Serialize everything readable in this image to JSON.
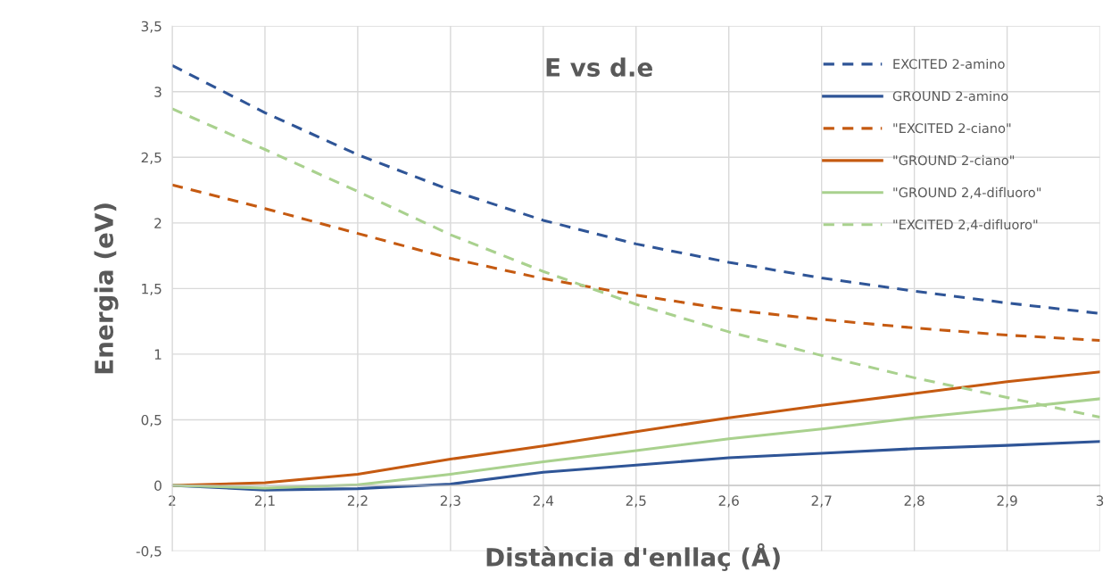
{
  "chart_data": {
    "type": "line",
    "title": "E vs d.e",
    "xlabel": "Distància d'enllaç (Å)",
    "ylabel": "Energia (eV)",
    "x": [
      2.0,
      2.1,
      2.2,
      2.3,
      2.4,
      2.5,
      2.6,
      2.7,
      2.8,
      2.9,
      3.0
    ],
    "series": [
      {
        "name": "EXCITED 2-amino",
        "color": "#2f5597",
        "line_style": "dashed",
        "values": [
          3.2,
          2.84,
          2.52,
          2.25,
          2.02,
          1.84,
          1.7,
          1.58,
          1.48,
          1.39,
          1.31
        ]
      },
      {
        "name": "GROUND 2-amino",
        "color": "#2f5597",
        "line_style": "solid",
        "values": [
          0,
          -0.035,
          -0.025,
          0.01,
          0.1,
          0.155,
          0.21,
          0.245,
          0.28,
          0.305,
          0.335
        ]
      },
      {
        "name": "\"EXCITED 2-ciano\"",
        "color": "#c55a11",
        "line_style": "dashed",
        "values": [
          2.29,
          2.11,
          1.92,
          1.73,
          1.575,
          1.45,
          1.34,
          1.265,
          1.2,
          1.145,
          1.105
        ]
      },
      {
        "name": "\"GROUND 2-ciano\"",
        "color": "#c55a11",
        "line_style": "solid",
        "values": [
          0,
          0.02,
          0.085,
          0.2,
          0.3,
          0.41,
          0.515,
          0.61,
          0.7,
          0.79,
          0.865
        ]
      },
      {
        "name": "\"GROUND 2,4-difluoro\"",
        "color": "#a9d18e",
        "line_style": "solid",
        "values": [
          0,
          -0.02,
          0.005,
          0.085,
          0.18,
          0.265,
          0.355,
          0.43,
          0.515,
          0.585,
          0.66
        ]
      },
      {
        "name": "\"EXCITED 2,4-difluoro\"",
        "color": "#a9d18e",
        "line_style": "dashed",
        "values": [
          2.87,
          2.56,
          2.24,
          1.91,
          1.63,
          1.38,
          1.17,
          0.99,
          0.82,
          0.67,
          0.52
        ]
      }
    ],
    "xlim": [
      2,
      3
    ],
    "xticks": [
      2,
      {
        "value": 2.1,
        "label": "2,1"
      },
      {
        "value": 2.2,
        "label": "2,2"
      },
      {
        "value": 2.3,
        "label": "2,3"
      },
      {
        "value": 2.4,
        "label": "2,4"
      },
      {
        "value": 2.5,
        "label": "2,5"
      },
      {
        "value": 2.6,
        "label": "2,6"
      },
      {
        "value": 2.7,
        "label": "2,7"
      },
      {
        "value": 2.8,
        "label": "2,8"
      },
      {
        "value": 2.9,
        "label": "2,9"
      },
      3
    ],
    "ylim": [
      -0.5,
      3.5
    ],
    "yticks": [
      {
        "value": -0.5,
        "label": "-0,5"
      },
      0,
      {
        "value": 0.5,
        "label": "0,5"
      },
      1,
      {
        "value": 1.5,
        "label": "1,5"
      },
      2,
      {
        "value": 2.5,
        "label": "2,5"
      },
      3,
      {
        "value": 3.5,
        "label": "3,5"
      }
    ],
    "grid": true,
    "legend": "top right",
    "marker": "none"
  }
}
